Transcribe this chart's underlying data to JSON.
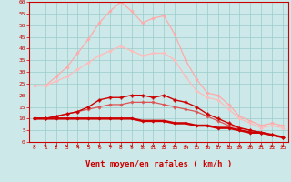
{
  "bg_color": "#cce8e8",
  "grid_color": "#99cccc",
  "xlabel": "Vent moyen/en rafales ( km/h )",
  "xlabel_color": "#cc0000",
  "xlabel_fontsize": 6.5,
  "tick_color": "#cc0000",
  "tick_fontsize": 4.5,
  "xlim": [
    -0.5,
    23.5
  ],
  "ylim": [
    0,
    60
  ],
  "yticks": [
    0,
    5,
    10,
    15,
    20,
    25,
    30,
    35,
    40,
    45,
    50,
    55,
    60
  ],
  "xticks": [
    0,
    1,
    2,
    3,
    4,
    5,
    6,
    7,
    8,
    9,
    10,
    11,
    12,
    13,
    14,
    15,
    16,
    17,
    18,
    19,
    20,
    21,
    22,
    23
  ],
  "series": [
    {
      "x": [
        0,
        1,
        2,
        3,
        4,
        5,
        6,
        7,
        8,
        9,
        10,
        11,
        12,
        13,
        14,
        15,
        16,
        17,
        18,
        19,
        20,
        21,
        22,
        23
      ],
      "y": [
        24,
        24,
        28,
        32,
        38,
        44,
        51,
        56,
        60,
        56,
        51,
        53,
        54,
        46,
        35,
        27,
        21,
        20,
        16,
        11,
        9,
        7,
        8,
        7
      ],
      "color": "#ffaaaa",
      "lw": 0.9,
      "marker": "D",
      "ms": 1.8,
      "zorder": 2
    },
    {
      "x": [
        0,
        1,
        2,
        3,
        4,
        5,
        6,
        7,
        8,
        9,
        10,
        11,
        12,
        13,
        14,
        15,
        16,
        17,
        18,
        19,
        20,
        21,
        22,
        23
      ],
      "y": [
        24,
        24,
        26,
        28,
        31,
        34,
        37,
        39,
        41,
        39,
        37,
        38,
        38,
        35,
        28,
        22,
        19,
        18,
        14,
        10,
        8,
        6,
        7,
        6
      ],
      "color": "#ffbbbb",
      "lw": 0.9,
      "marker": "D",
      "ms": 1.8,
      "zorder": 2
    },
    {
      "x": [
        0,
        1,
        2,
        3,
        4,
        5,
        6,
        7,
        8,
        9,
        10,
        11,
        12,
        13,
        14,
        15,
        16,
        17,
        18,
        19,
        20,
        21,
        22,
        23
      ],
      "y": [
        10,
        10,
        11,
        12,
        13,
        15,
        18,
        19,
        19,
        20,
        20,
        19,
        20,
        18,
        17,
        15,
        12,
        10,
        8,
        6,
        5,
        4,
        3,
        2
      ],
      "color": "#cc0000",
      "lw": 1.0,
      "marker": "P",
      "ms": 2.5,
      "zorder": 4
    },
    {
      "x": [
        0,
        1,
        2,
        3,
        4,
        5,
        6,
        7,
        8,
        9,
        10,
        11,
        12,
        13,
        14,
        15,
        16,
        17,
        18,
        19,
        20,
        21,
        22,
        23
      ],
      "y": [
        10,
        10,
        11,
        12,
        13,
        14,
        15,
        16,
        16,
        17,
        17,
        17,
        16,
        15,
        14,
        13,
        11,
        9,
        7,
        6,
        5,
        4,
        3,
        2
      ],
      "color": "#dd5555",
      "lw": 0.9,
      "marker": "D",
      "ms": 1.8,
      "zorder": 3
    },
    {
      "x": [
        0,
        1,
        2,
        3,
        4,
        5,
        6,
        7,
        8,
        9,
        10,
        11,
        12,
        13,
        14,
        15,
        16,
        17,
        18,
        19,
        20,
        21,
        22,
        23
      ],
      "y": [
        10,
        10,
        10,
        10,
        10,
        10,
        10,
        10,
        10,
        10,
        9,
        9,
        9,
        8,
        8,
        7,
        7,
        6,
        6,
        5,
        4,
        4,
        3,
        2
      ],
      "color": "#cc0000",
      "lw": 1.8,
      "marker": "D",
      "ms": 1.8,
      "zorder": 3
    }
  ],
  "arrow_color": "#cc0000"
}
